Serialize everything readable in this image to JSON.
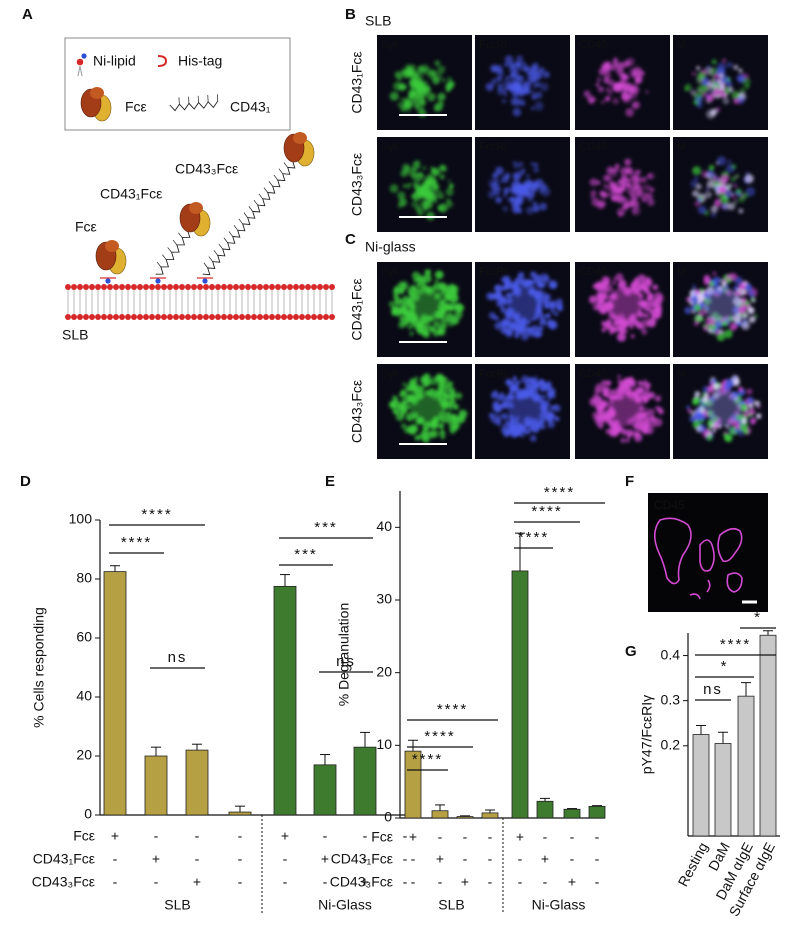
{
  "panel_labels": [
    "A",
    "B",
    "C",
    "D",
    "E",
    "F",
    "G"
  ],
  "diagram": {
    "legend": [
      "Ni-lipid",
      "His-tag",
      "Fcε",
      "CD43₁"
    ],
    "constructs": [
      "Fcε",
      "CD43₁Fcε",
      "CD43₃Fcε"
    ],
    "membrane": "SLB"
  },
  "micrographs": {
    "channels": [
      "Syk",
      "FcεRI",
      "CD45",
      "M"
    ],
    "rows": [
      "CD43₁Fcε",
      "CD43₃Fcε"
    ],
    "panels": [
      {
        "title": "SLB"
      },
      {
        "title": "Ni-glass"
      }
    ]
  },
  "panel_f": {
    "channel": "CD45"
  },
  "chart_data": [
    {
      "type": "bar",
      "ylabel": "% Cells responding",
      "ylim": [
        0,
        100
      ],
      "yticks": [
        0,
        20,
        40,
        60,
        80,
        100
      ],
      "series": [
        {
          "name": "SLB",
          "color": "#b5a144",
          "values": [
            82.5,
            20,
            22,
            1
          ],
          "errors": [
            2,
            3,
            2,
            2
          ]
        },
        {
          "name": "Ni-Glass",
          "color": "#3f7b2f",
          "values": [
            77.5,
            17,
            23,
            null
          ],
          "errors": [
            4,
            3.5,
            5,
            null
          ]
        }
      ],
      "table": [
        {
          "label": "Fcε",
          "signs": [
            "+",
            "-",
            "-",
            "-",
            "+",
            "-",
            "-",
            "-"
          ]
        },
        {
          "label": "CD43₁Fcε",
          "signs": [
            "-",
            "+",
            "-",
            "-",
            "-",
            "+",
            "-",
            "-"
          ]
        },
        {
          "label": "CD43₃Fcε",
          "signs": [
            "-",
            "-",
            "+",
            "-",
            "-",
            "-",
            "+",
            "-"
          ]
        }
      ],
      "brackets": [
        "****",
        "****",
        "ns",
        "***",
        "***",
        "ns"
      ]
    },
    {
      "type": "bar",
      "ylabel": "% Degranulation",
      "ylim": [
        0,
        45
      ],
      "yticks": [
        0,
        10,
        20,
        30,
        40
      ],
      "series": [
        {
          "name": "SLB",
          "color": "#b5a144",
          "values": [
            9.2,
            1,
            0.2,
            0.7
          ],
          "errors": [
            1.5,
            0.8,
            0.1,
            0.4
          ]
        },
        {
          "name": "Ni-Glass",
          "color": "#3f7b2f",
          "values": [
            34,
            2.3,
            1.2,
            1.6
          ],
          "errors": [
            5.2,
            0.4,
            0.1,
            0.1
          ]
        }
      ],
      "table": [
        {
          "label": "Fcε",
          "signs": [
            "+",
            "-",
            "-",
            "-",
            "+",
            "-",
            "-",
            "-"
          ]
        },
        {
          "label": "CD43₁Fcε",
          "signs": [
            "-",
            "+",
            "-",
            "-",
            "-",
            "+",
            "-",
            "-"
          ]
        },
        {
          "label": "CD43₃Fcε",
          "signs": [
            "-",
            "-",
            "+",
            "-",
            "-",
            "-",
            "+",
            "-"
          ]
        }
      ],
      "brackets": [
        "****",
        "****",
        "****",
        "****",
        "****",
        "****"
      ]
    },
    {
      "type": "bar",
      "ylabel": "pY47/FcεRIγ",
      "ylim": [
        0,
        0.45
      ],
      "yticks": [
        0.2,
        0.3,
        0.4
      ],
      "categories": [
        "Resting",
        "DaM",
        "DaM αIgE",
        "Surface αIgE"
      ],
      "color": "#c8c8c8",
      "values": [
        0.225,
        0.205,
        0.31,
        0.445
      ],
      "errors": [
        0.02,
        0.025,
        0.03,
        0.01
      ],
      "brackets": [
        "ns",
        "*",
        "****",
        "*"
      ]
    }
  ]
}
